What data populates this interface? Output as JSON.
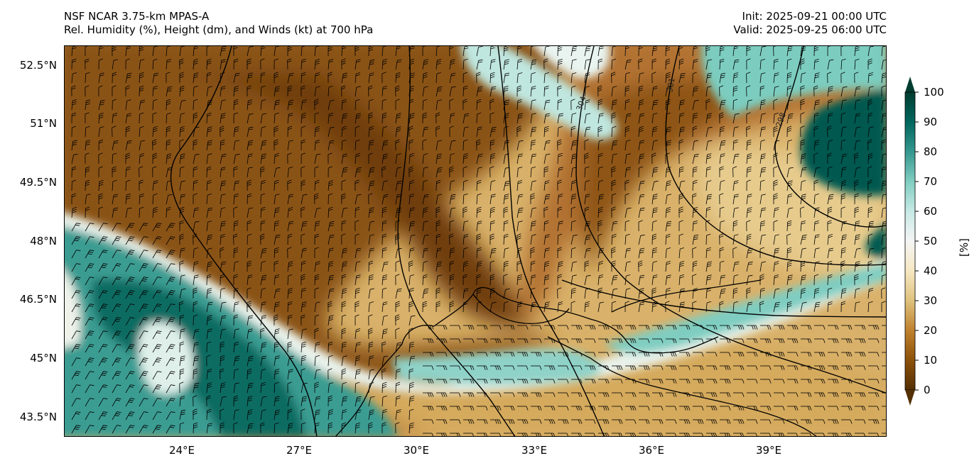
{
  "header": {
    "title_line1": "NSF NCAR 3.75-km MPAS-A",
    "title_line2": "Rel. Humidity (%), Height (dm), and Winds (kt) at 700 hPa",
    "init": "Init: 2025-09-21 00:00 UTC",
    "valid": "Valid: 2025-09-25 06:00 UTC"
  },
  "axes": {
    "lat_labels": [
      "52.5°N",
      "51°N",
      "49.5°N",
      "48°N",
      "46.5°N",
      "45°N",
      "43.5°N"
    ],
    "lon_labels": [
      "24°E",
      "27°E",
      "30°E",
      "33°E",
      "36°E",
      "39°E"
    ]
  },
  "colorbar": {
    "label": "[%]",
    "ticks": [
      "0",
      "10",
      "20",
      "30",
      "40",
      "50",
      "60",
      "70",
      "80",
      "90",
      "100"
    ],
    "colors": [
      "#543005",
      "#8c510a",
      "#bf812d",
      "#dfc27d",
      "#f6e8c3",
      "#f5f5f5",
      "#c7eae5",
      "#80cdc1",
      "#35978f",
      "#01665e",
      "#003c30"
    ]
  },
  "contours": {
    "labels": [
      "304",
      "301",
      "298"
    ]
  },
  "colors": {
    "dry_dark": "#7a4511",
    "dry_mid": "#a96a22",
    "dry_light": "#dcb775",
    "neutral": "#f2efe6",
    "moist_light": "#9fd8cf",
    "moist_mid": "#3a9e96",
    "moist_dark": "#00584f"
  }
}
